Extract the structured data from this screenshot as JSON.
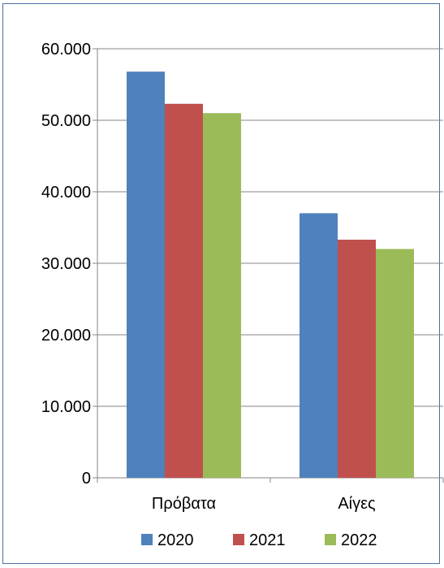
{
  "chart_data": {
    "type": "bar",
    "categories": [
      "Πρόβατα",
      "Αίγες"
    ],
    "series": [
      {
        "name": "2020",
        "values": [
          56800,
          37000
        ],
        "color": "#4f81bd"
      },
      {
        "name": "2021",
        "values": [
          52300,
          33300
        ],
        "color": "#c0504d"
      },
      {
        "name": "2022",
        "values": [
          51000,
          32000
        ],
        "color": "#9bbb59"
      }
    ],
    "ylim": [
      0,
      60000
    ],
    "yticks": [
      0,
      10000,
      20000,
      30000,
      40000,
      50000,
      60000
    ],
    "ytick_labels": [
      "0",
      "10.000",
      "20.000",
      "30.000",
      "40.000",
      "50.000",
      "60.000"
    ],
    "grid": true,
    "legend_position": "bottom",
    "title": "",
    "xlabel": "",
    "ylabel": ""
  }
}
